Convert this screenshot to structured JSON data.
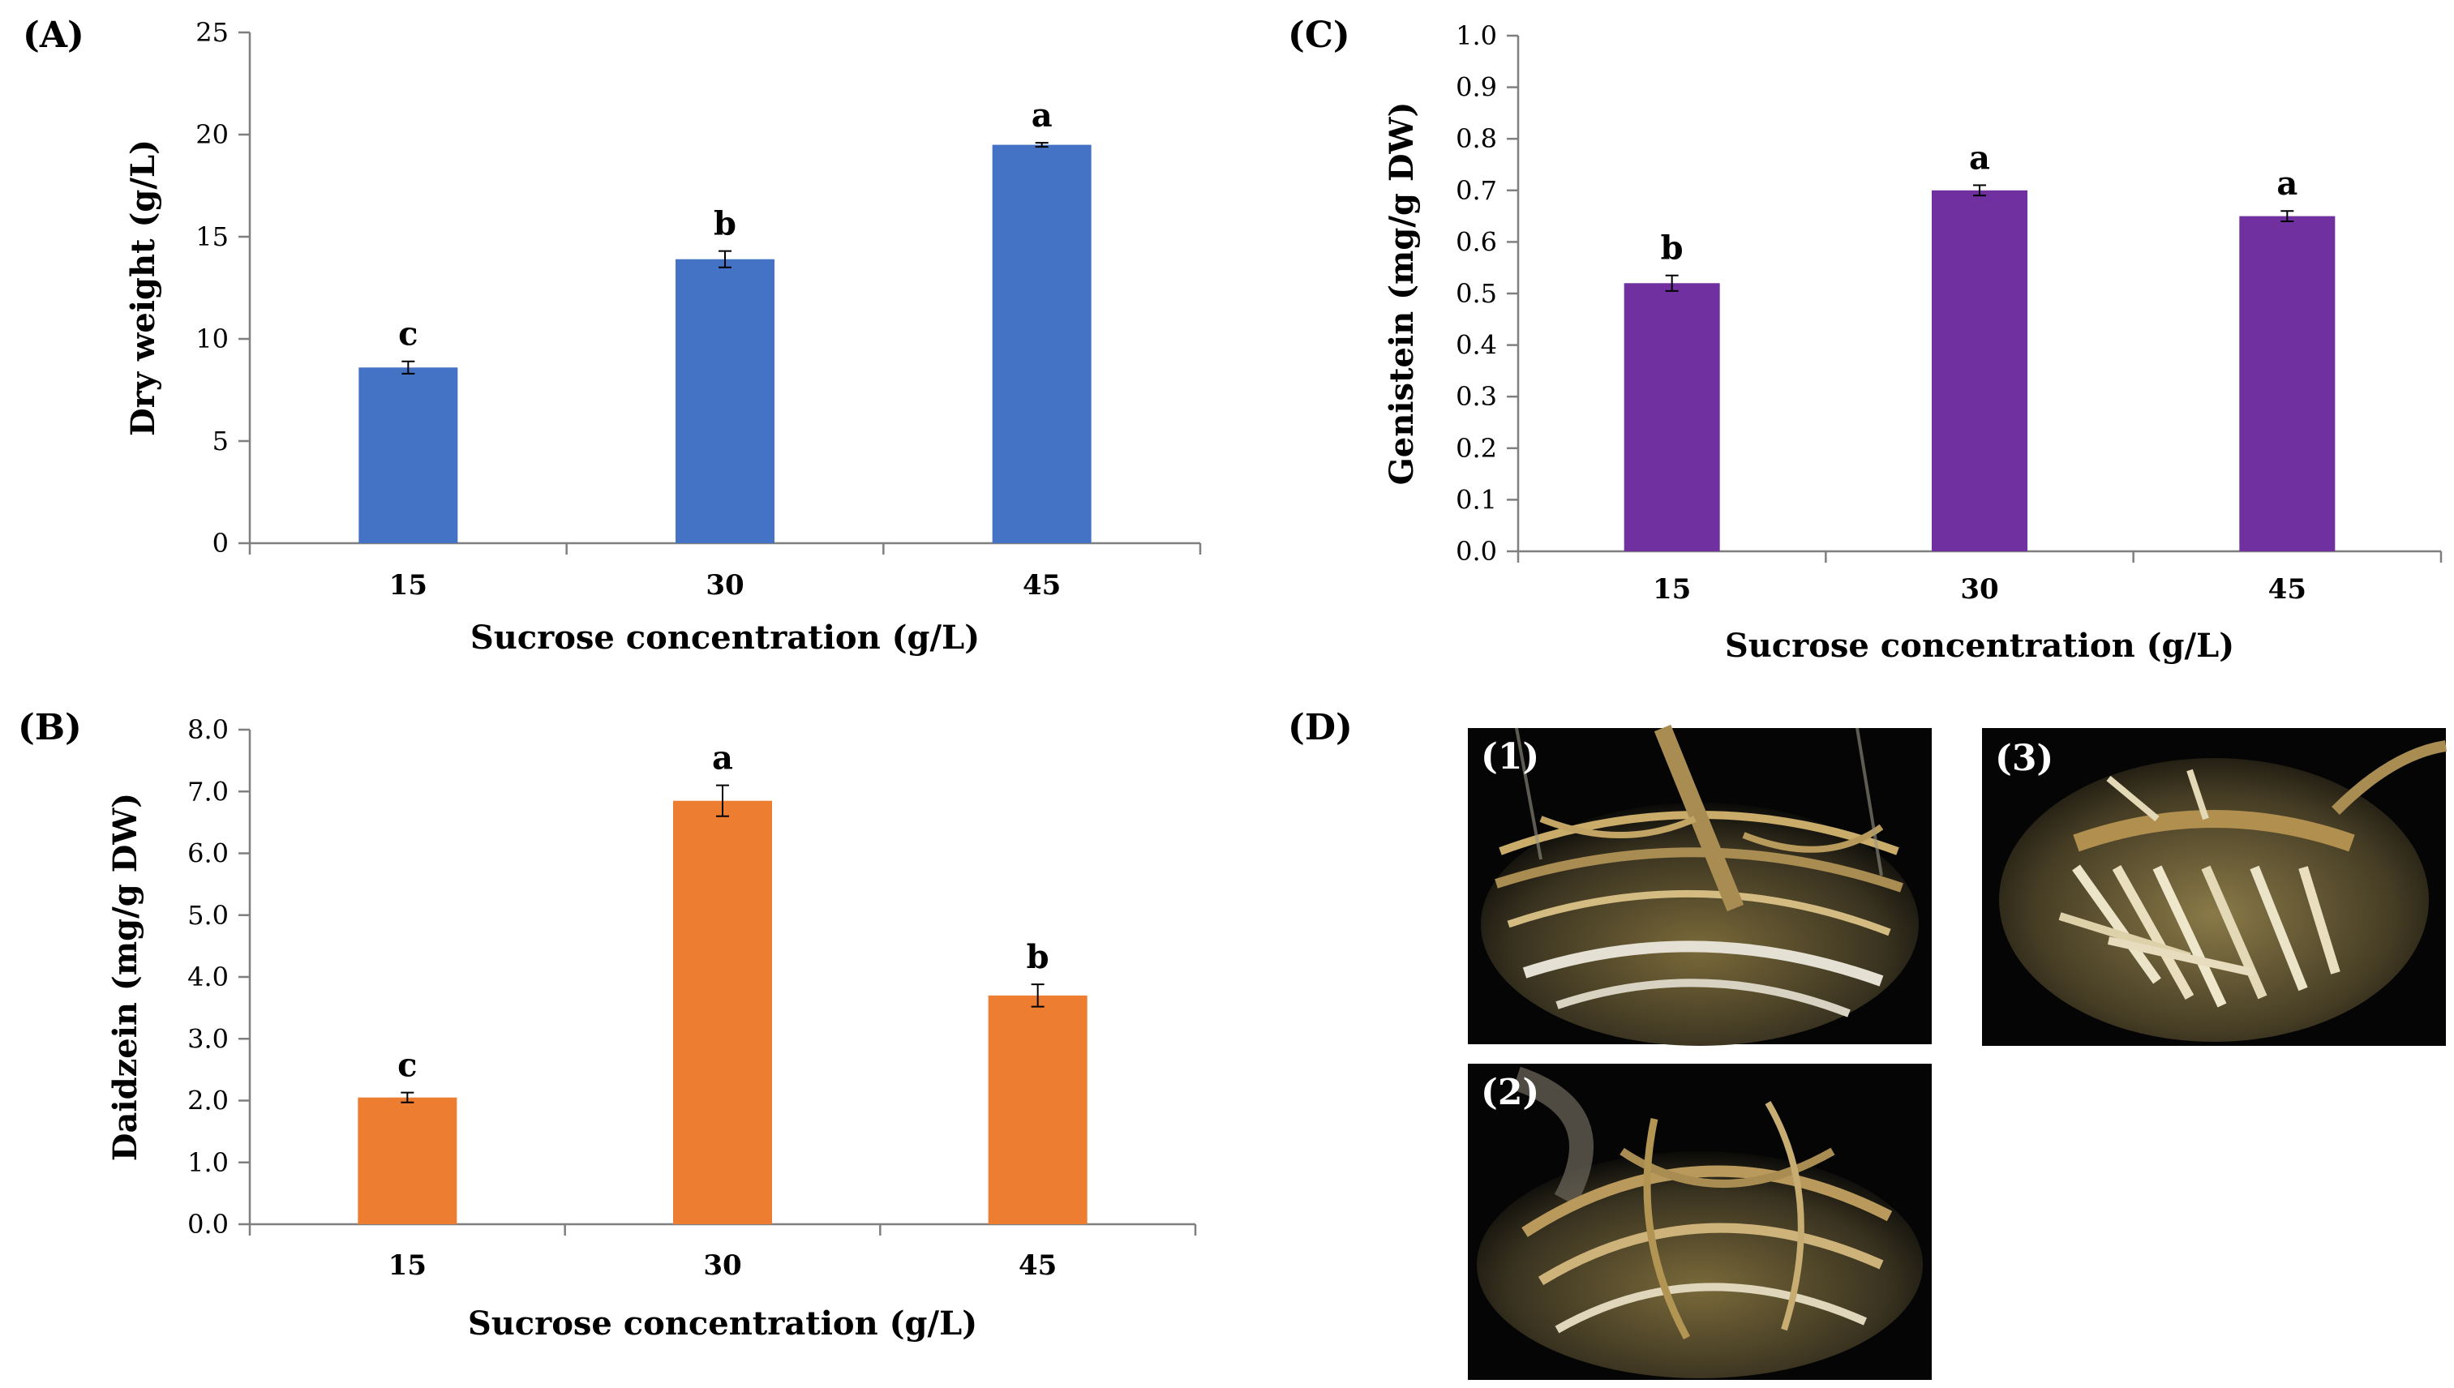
{
  "colors": {
    "panel_a": "#4472C4",
    "panel_b": "#ED7D31",
    "panel_c": "#7030A0",
    "axis": "#7f7f7f",
    "text": "#000000",
    "photo_bg": "#050505",
    "root": "#b99a5c",
    "root_light": "#e7dcbb"
  },
  "chart_data": [
    {
      "panel_label": "(A)",
      "type": "bar",
      "categories": [
        "15",
        "30",
        "45"
      ],
      "values": [
        8.6,
        13.9,
        19.5
      ],
      "errors": [
        0.3,
        0.4,
        0.1
      ],
      "significance": [
        "c",
        "b",
        "a"
      ],
      "title": "",
      "xlabel": "Sucrose concentration (g/L)",
      "ylabel": "Dry weight (g/L)",
      "ylim": [
        0,
        25
      ],
      "yticks": [
        "0",
        "5",
        "10",
        "15",
        "20",
        "25"
      ],
      "grid": false
    },
    {
      "panel_label": "(B)",
      "type": "bar",
      "categories": [
        "15",
        "30",
        "45"
      ],
      "values": [
        2.05,
        6.85,
        3.7
      ],
      "errors": [
        0.08,
        0.25,
        0.18
      ],
      "significance": [
        "c",
        "a",
        "b"
      ],
      "title": "",
      "xlabel": "Sucrose concentration (g/L)",
      "ylabel": "Daidzein (mg/g DW)",
      "ylim": [
        0,
        8
      ],
      "yticks": [
        "0.0",
        "1.0",
        "2.0",
        "3.0",
        "4.0",
        "5.0",
        "6.0",
        "7.0",
        "8.0"
      ],
      "grid": false
    },
    {
      "panel_label": "(C)",
      "type": "bar",
      "categories": [
        "15",
        "30",
        "45"
      ],
      "values": [
        0.52,
        0.7,
        0.65
      ],
      "errors": [
        0.015,
        0.01,
        0.01
      ],
      "significance": [
        "b",
        "a",
        "a"
      ],
      "title": "",
      "xlabel": "Sucrose concentration (g/L)",
      "ylabel": "Genistein (mg/g DW)",
      "ylim": [
        0,
        1
      ],
      "yticks": [
        "0.0",
        "0.1",
        "0.2",
        "0.3",
        "0.4",
        "0.5",
        "0.6",
        "0.7",
        "0.8",
        "0.9",
        "1.0"
      ],
      "grid": false
    }
  ],
  "panel_d": {
    "label": "(D)",
    "photos": [
      "(1)",
      "(2)",
      "(3)"
    ]
  }
}
